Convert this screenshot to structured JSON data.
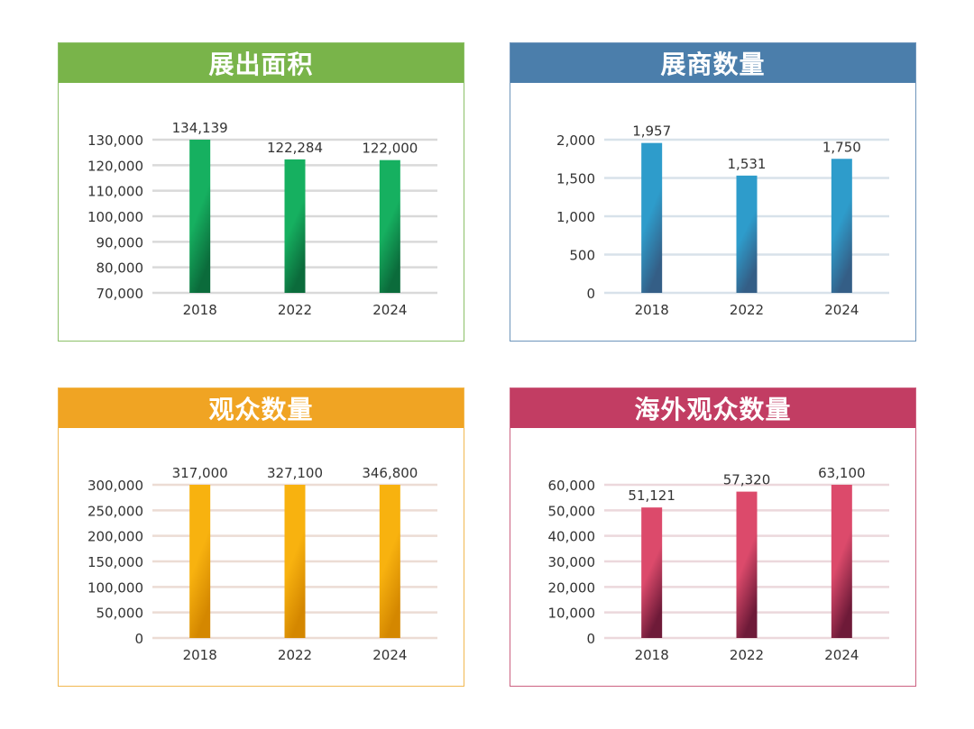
{
  "chart_data": [
    {
      "type": "bar",
      "title": "展出面积",
      "categories": [
        "2018",
        "2022",
        "2024"
      ],
      "values": [
        134139,
        122284,
        122000
      ],
      "value_labels": [
        "134,139",
        "122,284",
        "122,000"
      ],
      "ylim": [
        70000,
        130000
      ],
      "yticks": [
        70000,
        80000,
        90000,
        100000,
        110000,
        120000,
        130000
      ],
      "ytick_labels": [
        "70,000",
        "80,000",
        "90,000",
        "100,000",
        "110,000",
        "120,000",
        "130,000"
      ],
      "xlabel": "",
      "ylabel": "",
      "grid": true,
      "colors": {
        "header": "#79b44a",
        "border": "#8cc068",
        "bar_top": "#16b060",
        "bar_bottom": "#0b6b3b",
        "grid": "#d9d9d9"
      }
    },
    {
      "type": "bar",
      "title": "展商数量",
      "categories": [
        "2018",
        "2022",
        "2024"
      ],
      "values": [
        1957,
        1531,
        1750
      ],
      "value_labels": [
        "1,957",
        "1,531",
        "1,750"
      ],
      "ylim": [
        0,
        2000
      ],
      "yticks": [
        0,
        500,
        1000,
        1500,
        2000
      ],
      "ytick_labels": [
        "0",
        "500",
        "1,000",
        "1,500",
        "2,000"
      ],
      "xlabel": "",
      "ylabel": "",
      "grid": true,
      "colors": {
        "header": "#4b7eab",
        "border": "#6e95bb",
        "bar_top": "#2e9ccb",
        "bar_bottom": "#345e86",
        "grid": "#d8e2ea"
      }
    },
    {
      "type": "bar",
      "title": "观众数量",
      "categories": [
        "2018",
        "2022",
        "2024"
      ],
      "values": [
        317000,
        327100,
        346800
      ],
      "value_labels": [
        "317,000",
        "327,100",
        "346,800"
      ],
      "ylim": [
        0,
        300000
      ],
      "yticks": [
        0,
        50000,
        100000,
        150000,
        200000,
        250000,
        300000
      ],
      "ytick_labels": [
        "0",
        "50,000",
        "100,000",
        "150,000",
        "200,000",
        "250,000",
        "300,000"
      ],
      "xlabel": "",
      "ylabel": "",
      "grid": true,
      "colors": {
        "header": "#f0a423",
        "border": "#f2b850",
        "bar_top": "#f8b20f",
        "bar_bottom": "#d48700",
        "grid": "#ecdcd4"
      }
    },
    {
      "type": "bar",
      "title": "海外观众数量",
      "categories": [
        "2018",
        "2022",
        "2024"
      ],
      "values": [
        51121,
        57320,
        63100
      ],
      "value_labels": [
        "51,121",
        "57,320",
        "63,100"
      ],
      "ylim": [
        0,
        60000
      ],
      "yticks": [
        0,
        10000,
        20000,
        30000,
        40000,
        50000,
        60000
      ],
      "ytick_labels": [
        "0",
        "10,000",
        "20,000",
        "30,000",
        "40,000",
        "50,000",
        "60,000"
      ],
      "xlabel": "",
      "ylabel": "",
      "grid": true,
      "colors": {
        "header": "#c23d63",
        "border": "#cc6281",
        "bar_top": "#dc4a6b",
        "bar_bottom": "#6e1a38",
        "grid": "#ecd8dc"
      }
    }
  ]
}
